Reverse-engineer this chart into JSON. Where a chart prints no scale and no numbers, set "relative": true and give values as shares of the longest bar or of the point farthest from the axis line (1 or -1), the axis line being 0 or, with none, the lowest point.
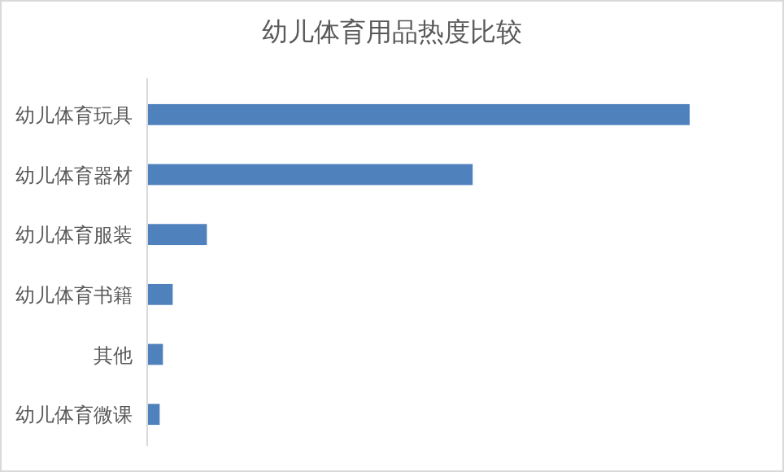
{
  "chart_data": {
    "type": "bar",
    "orientation": "horizontal",
    "relative": true,
    "title": "幼儿体育用品热度比较",
    "categories": [
      "幼儿体育玩具",
      "幼儿体育器材",
      "幼儿体育服装",
      "幼儿体育书籍",
      "其他",
      "幼儿体育微课"
    ],
    "values": [
      1,
      0.6,
      0.11,
      0.047,
      0.029,
      0.023
    ],
    "color": "#4f81bd"
  }
}
